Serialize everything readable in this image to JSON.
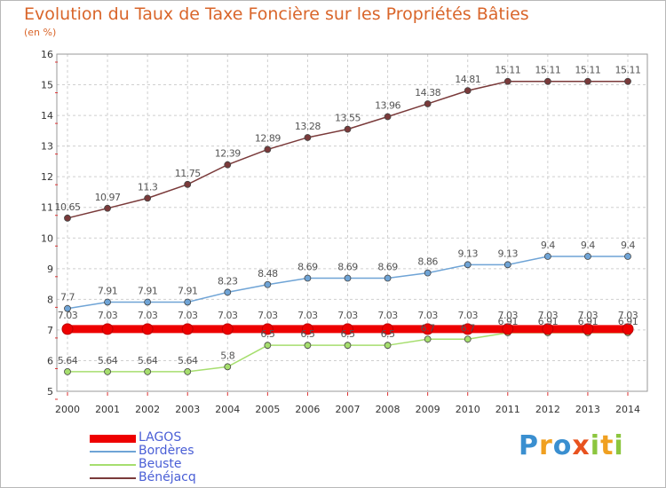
{
  "title": "Evolution du Taux de Taxe Foncière sur les Propriétés Bâties",
  "unit_label": "(en %)",
  "logo": {
    "letters": [
      {
        "ch": "P",
        "color": "#3a8fd0"
      },
      {
        "ch": "r",
        "color": "#f0a020"
      },
      {
        "ch": "o",
        "color": "#3a8fd0"
      },
      {
        "ch": "x",
        "color": "#e8521f"
      },
      {
        "ch": "i",
        "color": "#8cc63f"
      },
      {
        "ch": "t",
        "color": "#f0a020"
      },
      {
        "ch": "i",
        "color": "#8cc63f"
      }
    ]
  },
  "chart_data": {
    "type": "line",
    "title": "Evolution du Taux de Taxe Foncière sur les Propriétés Bâties",
    "ylabel": "(en %)",
    "ylim": [
      5,
      16
    ],
    "yticks": [
      "5",
      "6",
      "7",
      "8",
      "9",
      "10",
      "11",
      "12",
      "13",
      "14",
      "15",
      "16"
    ],
    "x": [
      "2000",
      "2001",
      "2002",
      "2003",
      "2004",
      "2005",
      "2006",
      "2007",
      "2008",
      "2009",
      "2010",
      "2011",
      "2012",
      "2013",
      "2014"
    ],
    "grid": true,
    "legend_position": "bottom-left",
    "series": [
      {
        "name": "LAGOS",
        "color": "#ee0000",
        "values": [
          7.03,
          7.03,
          7.03,
          7.03,
          7.03,
          7.03,
          7.03,
          7.03,
          7.03,
          7.03,
          7.03,
          7.03,
          7.03,
          7.03,
          7.03
        ],
        "labels": [
          "7.03",
          "7.03",
          "7.03",
          "7.03",
          "7.03",
          "7.03",
          "7.03",
          "7.03",
          "7.03",
          "7.03",
          "7.03",
          "7.03",
          "7.03",
          "7.03",
          "7.03"
        ]
      },
      {
        "name": "Bordères",
        "color": "#6fa4d6",
        "values": [
          7.7,
          7.91,
          7.91,
          7.91,
          8.23,
          8.48,
          8.69,
          8.69,
          8.69,
          8.86,
          9.13,
          9.13,
          9.4,
          9.4,
          9.4
        ],
        "labels": [
          "7.7",
          "7.91",
          "7.91",
          "7.91",
          "8.23",
          "8.48",
          "8.69",
          "8.69",
          "8.69",
          "8.86",
          "9.13",
          "9.13",
          "9.4",
          "9.4",
          "9.4"
        ]
      },
      {
        "name": "Beuste",
        "color": "#a6de6e",
        "values": [
          5.64,
          5.64,
          5.64,
          5.64,
          5.8,
          6.5,
          6.5,
          6.5,
          6.5,
          6.7,
          6.7,
          6.91,
          6.91,
          6.91,
          6.91
        ],
        "labels": [
          "5.64",
          "5.64",
          "5.64",
          "5.64",
          "5.8",
          "6.5",
          "6.5",
          "6.5",
          "6.5",
          "6.7",
          "6.7",
          "6.91",
          "6.91",
          "6.91",
          "6.91"
        ]
      },
      {
        "name": "Bénéjacq",
        "color": "#7a3a3a",
        "values": [
          10.65,
          10.97,
          11.3,
          11.75,
          12.39,
          12.89,
          13.28,
          13.55,
          13.96,
          14.38,
          14.81,
          15.11,
          15.11,
          15.11,
          15.11
        ],
        "labels": [
          "10.65",
          "10.97",
          "11.3",
          "11.75",
          "12.39",
          "12.89",
          "13.28",
          "13.55",
          "13.96",
          "14.38",
          "14.81",
          "15.11",
          "15.11",
          "15.11",
          "15.11"
        ]
      }
    ]
  }
}
